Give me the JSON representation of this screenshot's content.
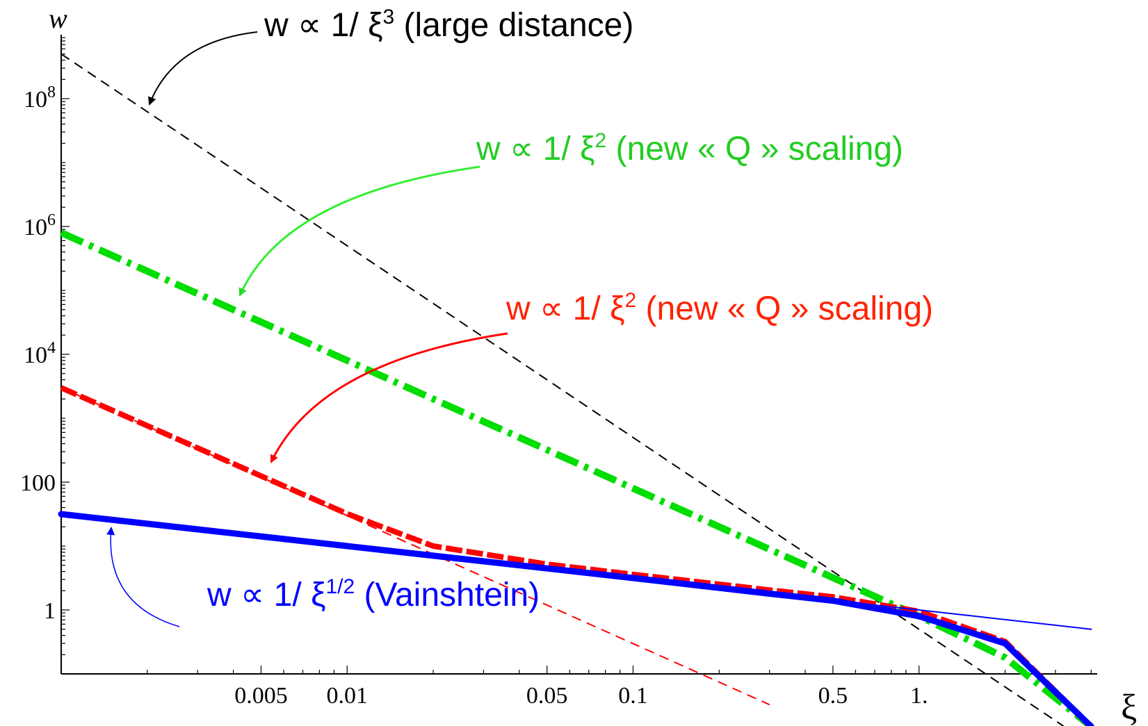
{
  "chart_data": {
    "type": "line",
    "xlabel": "ξ",
    "ylabel": "w",
    "x_scale": "log",
    "y_scale": "log",
    "xlim": [
      0.001,
      4.2
    ],
    "ylim": [
      0.1,
      1000000000
    ],
    "x_ticks": [
      {
        "value": 0.005,
        "label": "0.005"
      },
      {
        "value": 0.01,
        "label": "0.01"
      },
      {
        "value": 0.05,
        "label": "0.05"
      },
      {
        "value": 0.1,
        "label": "0.1"
      },
      {
        "value": 0.5,
        "label": "0.5"
      },
      {
        "value": 1,
        "label": "1."
      }
    ],
    "y_ticks": [
      {
        "value": 1,
        "base": "1",
        "exp": ""
      },
      {
        "value": 100,
        "base": "100",
        "exp": ""
      },
      {
        "value": 10000,
        "base": "10",
        "exp": "4"
      },
      {
        "value": 1000000,
        "base": "10",
        "exp": "6"
      },
      {
        "value": 100000000,
        "base": "10",
        "exp": "8"
      }
    ],
    "grid": false,
    "series": [
      {
        "color": "#000000",
        "style": "dashed-thin",
        "x": [
          0.001,
          0.3,
          1,
          4
        ],
        "y": [
          500000000,
          18.5,
          0.5,
          0.0078
        ]
      },
      {
        "color": "#00dd00",
        "style": "dashdot-thick",
        "x": [
          0.001,
          0.1,
          0.5,
          1,
          2,
          4
        ],
        "y": [
          800000,
          80,
          3.2,
          0.8,
          0.18,
          0.015
        ]
      },
      {
        "color": "#ff0000",
        "style": "dashed-thin",
        "x": [
          0.001,
          0.3
        ],
        "y": [
          3000,
          0.033
        ]
      },
      {
        "color": "#ff0000",
        "style": "dashed-thick",
        "x": [
          0.001,
          0.005,
          0.01,
          0.02,
          0.05,
          0.1,
          0.3,
          0.5,
          1,
          2,
          4
        ],
        "y": [
          3000,
          125,
          32,
          10,
          5.2,
          3.6,
          2.05,
          1.6,
          0.95,
          0.32,
          0.015
        ]
      },
      {
        "color": "#0000ff",
        "style": "solid-thin",
        "x": [
          0.001,
          4
        ],
        "y": [
          31.6,
          0.5
        ]
      },
      {
        "color": "#0000ff",
        "style": "solid-thick",
        "x": [
          0.001,
          0.01,
          0.1,
          0.3,
          0.5,
          1,
          2,
          4
        ],
        "y": [
          31.6,
          10,
          3.16,
          1.8,
          1.4,
          0.8,
          0.3,
          0.015
        ]
      }
    ],
    "annotations": [
      {
        "id": "black",
        "color": "#000000",
        "pre": "w ∝ 1/ ξ",
        "sup": "3",
        "post": " (large distance)"
      },
      {
        "id": "green",
        "color": "#22cc22",
        "pre": "w ∝ 1/ ξ",
        "sup": "2",
        "post": " (new « Q » scaling)"
      },
      {
        "id": "red",
        "color": "#ff2200",
        "pre": "w ∝ 1/ ξ",
        "sup": "2",
        "post": " (new « Q » scaling)"
      },
      {
        "id": "blue",
        "color": "#0000ff",
        "pre": "w ∝ 1/ ξ",
        "sup": "1/2",
        "post": " (Vainshtein)"
      }
    ]
  }
}
